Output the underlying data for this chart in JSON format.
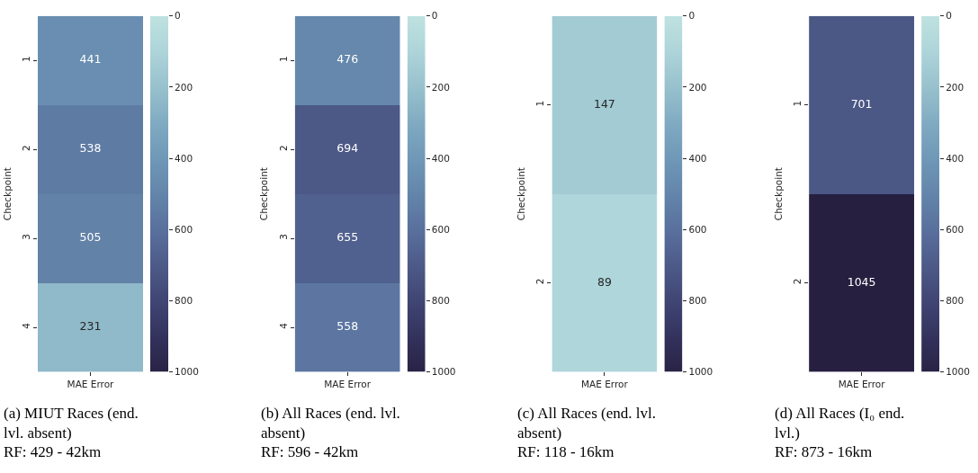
{
  "chart_data": [
    {
      "type": "heatmap",
      "categories": [
        "MAE Error"
      ],
      "y_categories": [
        "1",
        "2",
        "3",
        "4"
      ],
      "ylabel": "Checkpoint",
      "cells": [
        [
          441
        ],
        [
          538
        ],
        [
          505
        ],
        [
          231
        ]
      ],
      "clim": [
        1000,
        0
      ],
      "cticks": [
        0,
        200,
        400,
        600,
        800,
        1000
      ],
      "data_labels": true,
      "annotations": [
        "(a) MIUT Races (end. lvl. absent)",
        "RF: 429 - 42km"
      ]
    },
    {
      "type": "heatmap",
      "categories": [
        "MAE Error"
      ],
      "y_categories": [
        "1",
        "2",
        "3",
        "4"
      ],
      "ylabel": "Checkpoint",
      "cells": [
        [
          476
        ],
        [
          694
        ],
        [
          655
        ],
        [
          558
        ]
      ],
      "clim": [
        1000,
        0
      ],
      "cticks": [
        0,
        200,
        400,
        600,
        800,
        1000
      ],
      "data_labels": true,
      "annotations": [
        "(b) All Races (end. lvl. absent)",
        "RF: 596 - 42km"
      ]
    },
    {
      "type": "heatmap",
      "categories": [
        "MAE Error"
      ],
      "y_categories": [
        "1",
        "2"
      ],
      "ylabel": "Checkpoint",
      "cells": [
        [
          147
        ],
        [
          89
        ]
      ],
      "clim": [
        1000,
        0
      ],
      "cticks": [
        0,
        200,
        400,
        600,
        800,
        1000
      ],
      "data_labels": true,
      "annotations": [
        "(c) All Races (end. lvl. absent)",
        "RF: 118 - 16km"
      ]
    },
    {
      "type": "heatmap",
      "categories": [
        "MAE Error"
      ],
      "y_categories": [
        "1",
        "2"
      ],
      "ylabel": "Checkpoint",
      "cells": [
        [
          701
        ],
        [
          1045
        ]
      ],
      "clim": [
        1000,
        0
      ],
      "cticks": [
        0,
        200,
        400,
        600,
        800,
        1000
      ],
      "data_labels": true,
      "annotations": [
        "(d) All Races (I₀ end. lvl.)",
        "RF: 873 - 16km"
      ]
    }
  ]
}
